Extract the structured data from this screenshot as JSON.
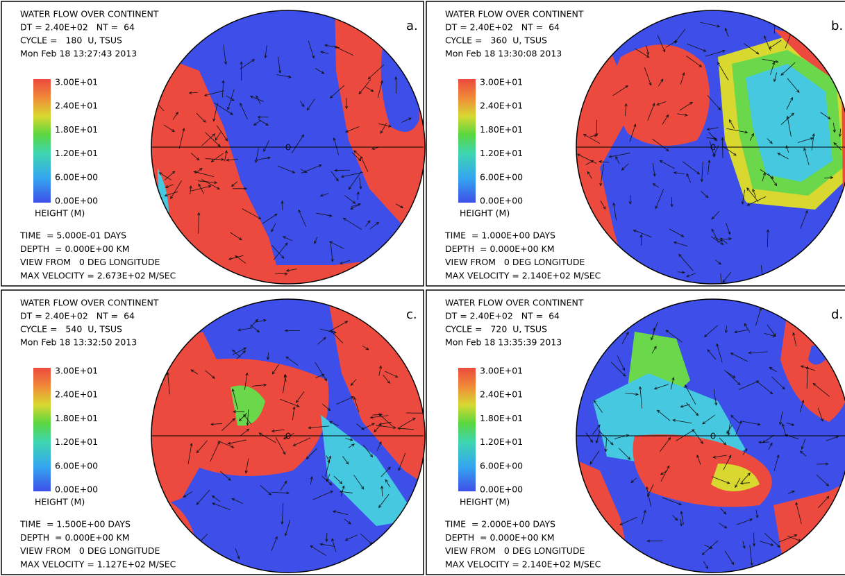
{
  "panels": [
    {
      "label": "a.",
      "header": [
        "WATER FLOW OVER CONTINENT",
        "DT = 2.40E+02   NT =  64",
        "CYCLE =   180  U, TSUS",
        "Mon Feb 18 13:27:43 2013"
      ],
      "colorbar": {
        "labels": [
          "3.00E+01",
          "2.40E+01",
          "1.80E+01",
          "1.20E+01",
          "6.00E+00",
          "0.00E+00"
        ],
        "title": "HEIGHT (M)"
      },
      "footer": [
        "TIME  = 5.000E-01 DAYS",
        "DEPTH  = 0.000E+00 KM",
        "VIEW FROM   0 DEG LONGITUDE",
        "MAX VELOCITY = 2.673E+02 M/SEC"
      ]
    },
    {
      "label": "b.",
      "header": [
        "WATER FLOW OVER CONTINENT",
        "DT = 2.40E+02   NT =  64",
        "CYCLE =   360  U, TSUS",
        "Mon Feb 18 13:30:08 2013"
      ],
      "colorbar": {
        "labels": [
          "3.00E+01",
          "2.40E+01",
          "1.80E+01",
          "1.20E+01",
          "6.00E+00",
          "0.00E+00"
        ],
        "title": "HEIGHT (M)"
      },
      "footer": [
        "TIME  = 1.000E+00 DAYS",
        "DEPTH  = 0.000E+00 KM",
        "VIEW FROM   0 DEG LONGITUDE",
        "MAX VELOCITY = 2.140E+02 M/SEC"
      ]
    },
    {
      "label": "c.",
      "header": [
        "WATER FLOW OVER CONTINENT",
        "DT = 2.40E+02   NT =  64",
        "CYCLE =   540  U, TSUS",
        "Mon Feb 18 13:32:50 2013"
      ],
      "colorbar": {
        "labels": [
          "3.00E+01",
          "2.40E+01",
          "1.80E+01",
          "1.20E+01",
          "6.00E+00",
          "0.00E+00"
        ],
        "title": "HEIGHT (M)"
      },
      "footer": [
        "TIME  = 1.500E+00 DAYS",
        "DEPTH  = 0.000E+00 KM",
        "VIEW FROM   0 DEG LONGITUDE",
        "MAX VELOCITY = 1.127E+02 M/SEC"
      ]
    },
    {
      "label": "d.",
      "header": [
        "WATER FLOW OVER CONTINENT",
        "DT = 2.40E+02   NT =  64",
        "CYCLE =   720  U, TSUS",
        "Mon Feb 18 13:35:39 2013"
      ],
      "colorbar": {
        "labels": [
          "3.00E+01",
          "2.40E+01",
          "1.80E+01",
          "1.20E+01",
          "6.00E+00",
          "0.00E+00"
        ],
        "title": "HEIGHT (M)"
      },
      "footer": [
        "TIME  = 2.000E+00 DAYS",
        "DEPTH  = 0.000E+00 KM",
        "VIEW FROM   0 DEG LONGITUDE",
        "MAX VELOCITY = 2.140E+02 M/SEC"
      ]
    }
  ]
}
